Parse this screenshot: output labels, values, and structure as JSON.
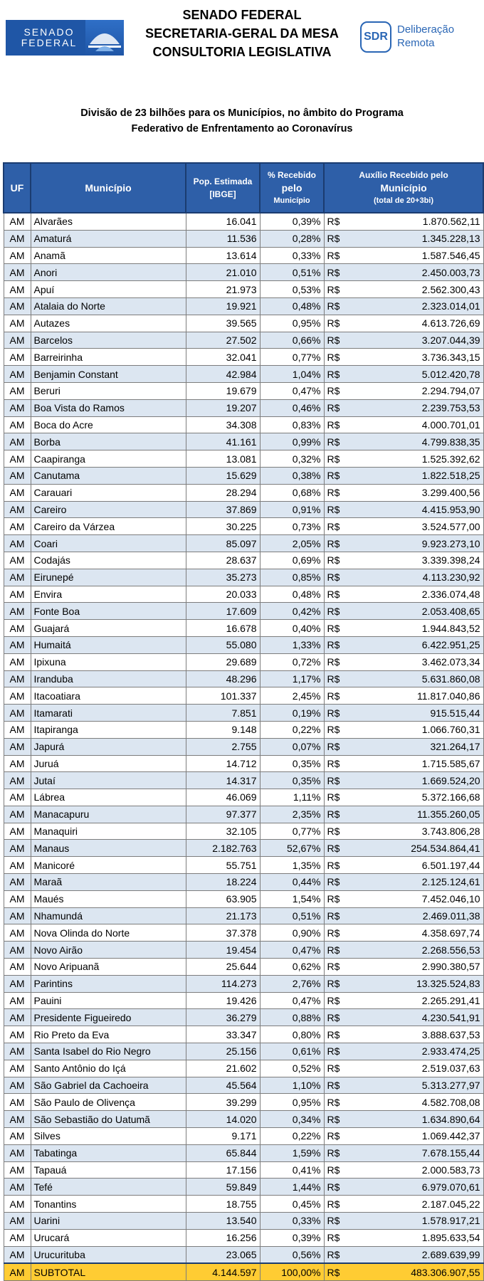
{
  "header": {
    "senado_logo_line1": "SENADO",
    "senado_logo_line2": "FEDERAL",
    "org_line1": "SENADO FEDERAL",
    "org_line2": "SECRETARIA-GERAL DA MESA",
    "org_line3": "CONSULTORIA LEGISLATIVA",
    "sdr_badge": "SDR",
    "sdr_line1": "Deliberação",
    "sdr_line2": "Remota"
  },
  "title": {
    "line1": "Divisão de 23 bilhões para os Municípios, no âmbito do Programa",
    "line2": "Federativo de Enfrentamento ao Coronavírus"
  },
  "table": {
    "headers": {
      "uf": "UF",
      "municipio": "Município",
      "pop_line1": "Pop. Estimada",
      "pop_line2": "[IBGE]",
      "pct_line1": "% Recebido",
      "pct_line2": "pelo",
      "pct_line3": "Município",
      "aux_line1": "Auxílio Recebido pelo",
      "aux_line2": "Município",
      "aux_line3": "(total de 20+3bi)"
    },
    "currency": "R$",
    "rows": [
      {
        "uf": "AM",
        "municipio": "Alvarães",
        "pop": "16.041",
        "pct": "0,39%",
        "valor": "1.870.562,11"
      },
      {
        "uf": "AM",
        "municipio": "Amaturá",
        "pop": "11.536",
        "pct": "0,28%",
        "valor": "1.345.228,13"
      },
      {
        "uf": "AM",
        "municipio": "Anamã",
        "pop": "13.614",
        "pct": "0,33%",
        "valor": "1.587.546,45"
      },
      {
        "uf": "AM",
        "municipio": "Anori",
        "pop": "21.010",
        "pct": "0,51%",
        "valor": "2.450.003,73"
      },
      {
        "uf": "AM",
        "municipio": "Apuí",
        "pop": "21.973",
        "pct": "0,53%",
        "valor": "2.562.300,43"
      },
      {
        "uf": "AM",
        "municipio": "Atalaia do Norte",
        "pop": "19.921",
        "pct": "0,48%",
        "valor": "2.323.014,01"
      },
      {
        "uf": "AM",
        "municipio": "Autazes",
        "pop": "39.565",
        "pct": "0,95%",
        "valor": "4.613.726,69"
      },
      {
        "uf": "AM",
        "municipio": "Barcelos",
        "pop": "27.502",
        "pct": "0,66%",
        "valor": "3.207.044,39"
      },
      {
        "uf": "AM",
        "municipio": "Barreirinha",
        "pop": "32.041",
        "pct": "0,77%",
        "valor": "3.736.343,15"
      },
      {
        "uf": "AM",
        "municipio": "Benjamin Constant",
        "pop": "42.984",
        "pct": "1,04%",
        "valor": "5.012.420,78"
      },
      {
        "uf": "AM",
        "municipio": "Beruri",
        "pop": "19.679",
        "pct": "0,47%",
        "valor": "2.294.794,07"
      },
      {
        "uf": "AM",
        "municipio": "Boa Vista do Ramos",
        "pop": "19.207",
        "pct": "0,46%",
        "valor": "2.239.753,53"
      },
      {
        "uf": "AM",
        "municipio": "Boca do Acre",
        "pop": "34.308",
        "pct": "0,83%",
        "valor": "4.000.701,01"
      },
      {
        "uf": "AM",
        "municipio": "Borba",
        "pop": "41.161",
        "pct": "0,99%",
        "valor": "4.799.838,35"
      },
      {
        "uf": "AM",
        "municipio": "Caapiranga",
        "pop": "13.081",
        "pct": "0,32%",
        "valor": "1.525.392,62"
      },
      {
        "uf": "AM",
        "municipio": "Canutama",
        "pop": "15.629",
        "pct": "0,38%",
        "valor": "1.822.518,25"
      },
      {
        "uf": "AM",
        "municipio": "Carauari",
        "pop": "28.294",
        "pct": "0,68%",
        "valor": "3.299.400,56"
      },
      {
        "uf": "AM",
        "municipio": "Careiro",
        "pop": "37.869",
        "pct": "0,91%",
        "valor": "4.415.953,90"
      },
      {
        "uf": "AM",
        "municipio": "Careiro da Várzea",
        "pop": "30.225",
        "pct": "0,73%",
        "valor": "3.524.577,00"
      },
      {
        "uf": "AM",
        "municipio": "Coari",
        "pop": "85.097",
        "pct": "2,05%",
        "valor": "9.923.273,10"
      },
      {
        "uf": "AM",
        "municipio": "Codajás",
        "pop": "28.637",
        "pct": "0,69%",
        "valor": "3.339.398,24"
      },
      {
        "uf": "AM",
        "municipio": "Eirunepé",
        "pop": "35.273",
        "pct": "0,85%",
        "valor": "4.113.230,92"
      },
      {
        "uf": "AM",
        "municipio": "Envira",
        "pop": "20.033",
        "pct": "0,48%",
        "valor": "2.336.074,48"
      },
      {
        "uf": "AM",
        "municipio": "Fonte Boa",
        "pop": "17.609",
        "pct": "0,42%",
        "valor": "2.053.408,65"
      },
      {
        "uf": "AM",
        "municipio": "Guajará",
        "pop": "16.678",
        "pct": "0,40%",
        "valor": "1.944.843,52"
      },
      {
        "uf": "AM",
        "municipio": "Humaitá",
        "pop": "55.080",
        "pct": "1,33%",
        "valor": "6.422.951,25"
      },
      {
        "uf": "AM",
        "municipio": "Ipixuna",
        "pop": "29.689",
        "pct": "0,72%",
        "valor": "3.462.073,34"
      },
      {
        "uf": "AM",
        "municipio": "Iranduba",
        "pop": "48.296",
        "pct": "1,17%",
        "valor": "5.631.860,08"
      },
      {
        "uf": "AM",
        "municipio": "Itacoatiara",
        "pop": "101.337",
        "pct": "2,45%",
        "valor": "11.817.040,86"
      },
      {
        "uf": "AM",
        "municipio": "Itamarati",
        "pop": "7.851",
        "pct": "0,19%",
        "valor": "915.515,44"
      },
      {
        "uf": "AM",
        "municipio": "Itapiranga",
        "pop": "9.148",
        "pct": "0,22%",
        "valor": "1.066.760,31"
      },
      {
        "uf": "AM",
        "municipio": "Japurá",
        "pop": "2.755",
        "pct": "0,07%",
        "valor": "321.264,17"
      },
      {
        "uf": "AM",
        "municipio": "Juruá",
        "pop": "14.712",
        "pct": "0,35%",
        "valor": "1.715.585,67"
      },
      {
        "uf": "AM",
        "municipio": "Jutaí",
        "pop": "14.317",
        "pct": "0,35%",
        "valor": "1.669.524,20"
      },
      {
        "uf": "AM",
        "municipio": "Lábrea",
        "pop": "46.069",
        "pct": "1,11%",
        "valor": "5.372.166,68"
      },
      {
        "uf": "AM",
        "municipio": "Manacapuru",
        "pop": "97.377",
        "pct": "2,35%",
        "valor": "11.355.260,05"
      },
      {
        "uf": "AM",
        "municipio": "Manaquiri",
        "pop": "32.105",
        "pct": "0,77%",
        "valor": "3.743.806,28"
      },
      {
        "uf": "AM",
        "municipio": "Manaus",
        "pop": "2.182.763",
        "pct": "52,67%",
        "valor": "254.534.864,41"
      },
      {
        "uf": "AM",
        "municipio": "Manicoré",
        "pop": "55.751",
        "pct": "1,35%",
        "valor": "6.501.197,44"
      },
      {
        "uf": "AM",
        "municipio": "Maraã",
        "pop": "18.224",
        "pct": "0,44%",
        "valor": "2.125.124,61"
      },
      {
        "uf": "AM",
        "municipio": "Maués",
        "pop": "63.905",
        "pct": "1,54%",
        "valor": "7.452.046,10"
      },
      {
        "uf": "AM",
        "municipio": "Nhamundá",
        "pop": "21.173",
        "pct": "0,51%",
        "valor": "2.469.011,38"
      },
      {
        "uf": "AM",
        "municipio": "Nova Olinda do Norte",
        "pop": "37.378",
        "pct": "0,90%",
        "valor": "4.358.697,74"
      },
      {
        "uf": "AM",
        "municipio": "Novo Airão",
        "pop": "19.454",
        "pct": "0,47%",
        "valor": "2.268.556,53"
      },
      {
        "uf": "AM",
        "municipio": "Novo Aripuanã",
        "pop": "25.644",
        "pct": "0,62%",
        "valor": "2.990.380,57"
      },
      {
        "uf": "AM",
        "municipio": "Parintins",
        "pop": "114.273",
        "pct": "2,76%",
        "valor": "13.325.524,83"
      },
      {
        "uf": "AM",
        "municipio": "Pauini",
        "pop": "19.426",
        "pct": "0,47%",
        "valor": "2.265.291,41"
      },
      {
        "uf": "AM",
        "municipio": "Presidente Figueiredo",
        "pop": "36.279",
        "pct": "0,88%",
        "valor": "4.230.541,91"
      },
      {
        "uf": "AM",
        "municipio": "Rio Preto da Eva",
        "pop": "33.347",
        "pct": "0,80%",
        "valor": "3.888.637,53"
      },
      {
        "uf": "AM",
        "municipio": "Santa Isabel do Rio Negro",
        "pop": "25.156",
        "pct": "0,61%",
        "valor": "2.933.474,25"
      },
      {
        "uf": "AM",
        "municipio": "Santo Antônio do Içá",
        "pop": "21.602",
        "pct": "0,52%",
        "valor": "2.519.037,63"
      },
      {
        "uf": "AM",
        "municipio": "São Gabriel da Cachoeira",
        "pop": "45.564",
        "pct": "1,10%",
        "valor": "5.313.277,97"
      },
      {
        "uf": "AM",
        "municipio": "São Paulo de Olivença",
        "pop": "39.299",
        "pct": "0,95%",
        "valor": "4.582.708,08"
      },
      {
        "uf": "AM",
        "municipio": "São Sebastião do Uatumã",
        "pop": "14.020",
        "pct": "0,34%",
        "valor": "1.634.890,64"
      },
      {
        "uf": "AM",
        "municipio": "Silves",
        "pop": "9.171",
        "pct": "0,22%",
        "valor": "1.069.442,37"
      },
      {
        "uf": "AM",
        "municipio": "Tabatinga",
        "pop": "65.844",
        "pct": "1,59%",
        "valor": "7.678.155,44"
      },
      {
        "uf": "AM",
        "municipio": "Tapauá",
        "pop": "17.156",
        "pct": "0,41%",
        "valor": "2.000.583,73"
      },
      {
        "uf": "AM",
        "municipio": "Tefé",
        "pop": "59.849",
        "pct": "1,44%",
        "valor": "6.979.070,61"
      },
      {
        "uf": "AM",
        "municipio": "Tonantins",
        "pop": "18.755",
        "pct": "0,45%",
        "valor": "2.187.045,22"
      },
      {
        "uf": "AM",
        "municipio": "Uarini",
        "pop": "13.540",
        "pct": "0,33%",
        "valor": "1.578.917,21"
      },
      {
        "uf": "AM",
        "municipio": "Urucará",
        "pop": "16.256",
        "pct": "0,39%",
        "valor": "1.895.633,54"
      },
      {
        "uf": "AM",
        "municipio": "Urucurituba",
        "pop": "23.065",
        "pct": "0,56%",
        "valor": "2.689.639,99"
      }
    ],
    "subtotal": {
      "uf": "AM",
      "label": "SUBTOTAL",
      "pop": "4.144.597",
      "pct": "100,00%",
      "valor": "483.306.907,55"
    }
  },
  "colors": {
    "header_blue": "#2e5fa8",
    "row_stripe": "#dce6f1",
    "subtotal_yellow": "#ffcc33",
    "logo_blue": "#1f56a6"
  }
}
